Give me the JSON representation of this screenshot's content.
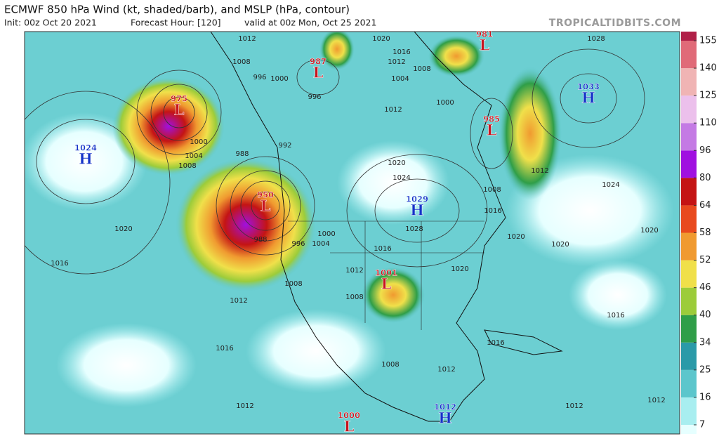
{
  "header": {
    "title": "ECMWF 850 hPa Wind (kt, shaded/barb), and MSLP (hPa, contour)",
    "init": "Init: 00z Oct 20 2021",
    "forecast_hour": "Forecast Hour: [120]",
    "valid": "valid at 00z Mon, Oct 25 2021",
    "source": "TROPICALTIDBITS.COM"
  },
  "colorbar": {
    "ticks": [
      7,
      16,
      25,
      34,
      40,
      46,
      52,
      58,
      64,
      80,
      96,
      110,
      125,
      140,
      155
    ],
    "colors": [
      "#e6ffff",
      "#a8eef0",
      "#5cc6cc",
      "#2a9aa8",
      "#2f9e48",
      "#9ccc3a",
      "#f0e04a",
      "#f09a30",
      "#e84a1e",
      "#c41414",
      "#a010e0",
      "#c47ae4",
      "#ecc0ec",
      "#f0b4b4",
      "#e06a78",
      "#b02048"
    ]
  },
  "pressure_centers": [
    {
      "letter": "L",
      "value": 975
    },
    {
      "letter": "H",
      "value": 1024
    },
    {
      "letter": "L",
      "value": 987
    },
    {
      "letter": "L",
      "value": 981
    },
    {
      "letter": "H",
      "value": 1033
    },
    {
      "letter": "L",
      "value": 985
    },
    {
      "letter": "L",
      "value": 950
    },
    {
      "letter": "H",
      "value": 1029
    },
    {
      "letter": "L",
      "value": 1001
    },
    {
      "letter": "L",
      "value": 1000
    },
    {
      "letter": "H",
      "value": 1012
    }
  ],
  "contour_labels": [
    1012,
    1008,
    996,
    1000,
    996,
    1020,
    1016,
    1012,
    1008,
    1004,
    1000,
    1012,
    1028,
    1000,
    1004,
    1008,
    988,
    992,
    1020,
    1024,
    1028,
    1008,
    1012,
    1016,
    1024,
    1020,
    1020,
    1020,
    1020,
    1016,
    988,
    996,
    1000,
    1004,
    1016,
    1012,
    1020,
    1008,
    1008,
    1012,
    1016,
    1016,
    1016,
    1008,
    1012,
    1012,
    1012,
    1012
  ]
}
